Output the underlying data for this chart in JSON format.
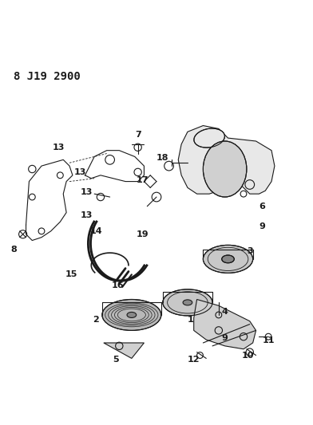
{
  "title": "8 J19 2900",
  "bg_color": "#ffffff",
  "line_color": "#1a1a1a",
  "label_color": "#1a1a1a",
  "title_fontsize": 10,
  "label_fontsize": 8
}
